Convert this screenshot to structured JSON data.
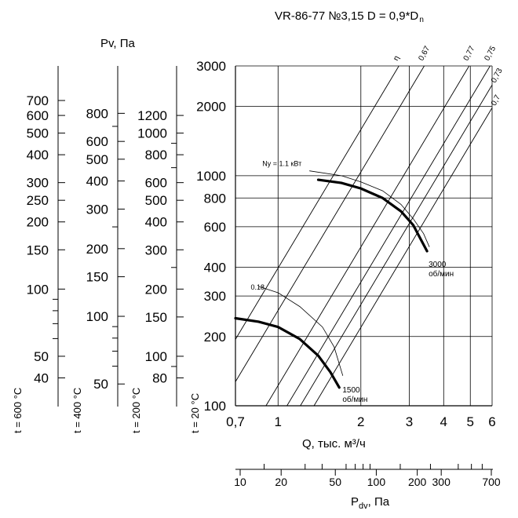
{
  "chart_data": {
    "type": "line",
    "title": "VR-86-77 №3,15 D = 0,9*D",
    "title_sub": "n",
    "xlabel": "Q, тыс. м³/ч",
    "ylabel": "",
    "x_scale": "log",
    "y_scale": "log",
    "xlim": [
      0.7,
      6
    ],
    "ylim": [
      100,
      3000
    ],
    "x_ticks": [
      "0,7",
      "1",
      "2",
      "3",
      "4",
      "5",
      "6"
    ],
    "x_tick_values": [
      0.7,
      1,
      2,
      3,
      4,
      5,
      6
    ],
    "y_ticks": [
      "100",
      "200",
      "300",
      "400",
      "600",
      "800",
      "1000",
      "2000",
      "3000"
    ],
    "y_tick_values": [
      100,
      200,
      300,
      400,
      600,
      800,
      1000,
      2000,
      3000
    ],
    "grid": true,
    "pv_label": "Pv, Па",
    "pressure_scales": [
      {
        "name": "t = 600 °C",
        "labels": [
          {
            "text": "700",
            "y": 700
          },
          {
            "text": "600",
            "y": 600
          },
          {
            "text": "500",
            "y": 500
          },
          {
            "text": "400",
            "y": 400
          },
          {
            "text": "300",
            "y": 300
          },
          {
            "text": "250",
            "y": 250
          },
          {
            "text": "200",
            "y": 200
          },
          {
            "text": "150",
            "y": 150
          },
          {
            "text": "100",
            "y": 100
          },
          {
            "text": "50",
            "y": 50
          },
          {
            "text": "40",
            "y": 40
          }
        ],
        "minor": [
          90,
          80,
          70,
          60
        ]
      },
      {
        "name": "t = 400 °C",
        "labels": [
          {
            "text": "800",
            "y": 800
          },
          {
            "text": "600",
            "y": 600
          },
          {
            "text": "500",
            "y": 500
          },
          {
            "text": "400",
            "y": 400
          },
          {
            "text": "300",
            "y": 300
          },
          {
            "text": "200",
            "y": 200
          },
          {
            "text": "150",
            "y": 150
          },
          {
            "text": "100",
            "y": 100
          },
          {
            "text": "50",
            "y": 50
          }
        ],
        "minor": [
          700,
          250,
          90,
          80,
          70,
          60
        ]
      },
      {
        "name": "t = 200 °C",
        "labels": [
          {
            "text": "1200",
            "y": 1200
          },
          {
            "text": "1000",
            "y": 1000
          },
          {
            "text": "800",
            "y": 800
          },
          {
            "text": "600",
            "y": 600
          },
          {
            "text": "500",
            "y": 500
          },
          {
            "text": "400",
            "y": 400
          },
          {
            "text": "300",
            "y": 300
          },
          {
            "text": "200",
            "y": 200
          },
          {
            "text": "150",
            "y": 150
          },
          {
            "text": "100",
            "y": 100
          },
          {
            "text": "80",
            "y": 80
          }
        ],
        "minor": [
          900,
          700,
          250,
          90
        ]
      },
      {
        "name": "t = 20 °C",
        "labels": [],
        "minor": []
      }
    ],
    "efficiency_lines": [
      {
        "name": "η",
        "q_at_top": 2.75
      },
      {
        "name": "0,67",
        "q_at_top": 3.4
      },
      {
        "name": "0,77",
        "q_at_top": 4.95
      },
      {
        "name": "0,75",
        "q_at_top": 5.9
      },
      {
        "name": "0,73",
        "q_at_top": 6.6
      },
      {
        "name": "0,7",
        "q_at_top": 7.4
      }
    ],
    "series": [
      {
        "name": "3000 об/мин",
        "x": [
          1.4,
          1.7,
          2.0,
          2.4,
          2.8,
          3.1,
          3.3,
          3.48
        ],
        "y": [
          960,
          930,
          880,
          800,
          700,
          610,
          530,
          470
        ]
      },
      {
        "name": "1500 об/мин",
        "x": [
          0.7,
          0.85,
          1.0,
          1.2,
          1.4,
          1.55,
          1.67
        ],
        "y": [
          240,
          232,
          220,
          195,
          165,
          140,
          120
        ]
      }
    ],
    "power_curves": [
      {
        "label": "Nу = 1.1 кВт",
        "x": [
          1.3,
          1.7,
          2.0,
          2.4,
          2.8,
          3.1,
          3.38,
          3.55
        ],
        "y": [
          1050,
          1000,
          940,
          860,
          750,
          650,
          560,
          490
        ]
      },
      {
        "label": "0.18",
        "x": [
          0.85,
          1.0,
          1.2,
          1.45,
          1.6,
          1.72
        ],
        "y": [
          330,
          310,
          270,
          220,
          180,
          135
        ]
      }
    ],
    "pdv_label": "Pdv, Па",
    "pdv_ticks": [
      {
        "text": "10",
        "v": 10
      },
      {
        "text": "20",
        "v": 20
      },
      {
        "text": "50",
        "v": 50
      },
      {
        "text": "100",
        "v": 100
      },
      {
        "text": "200",
        "v": 200
      },
      {
        "text": "300",
        "v": 300
      },
      {
        "text": "700",
        "v": 700
      }
    ],
    "pdv_minor": [
      15,
      30,
      40,
      60,
      70,
      80,
      90,
      150,
      250,
      400,
      500,
      600
    ]
  }
}
